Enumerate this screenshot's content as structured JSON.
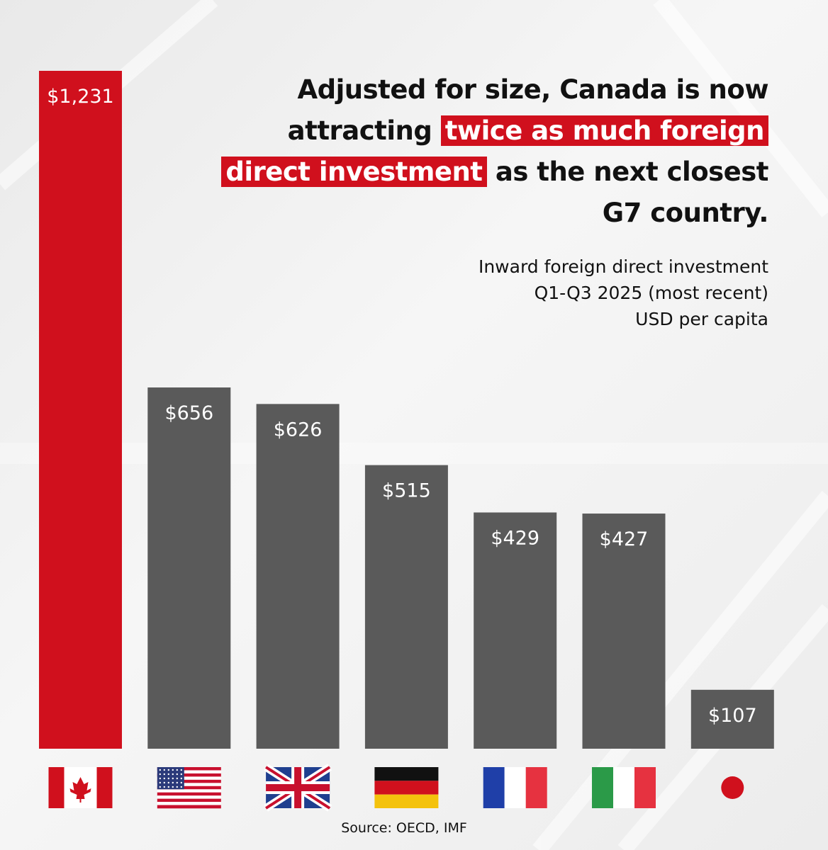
{
  "headline": {
    "part1": "Adjusted for size, Canada is now attracting ",
    "highlight1": "twice as much foreign",
    "highlight2": "direct investment",
    "part2": " as the next closest G7 country."
  },
  "subtitle": {
    "line1": "Inward foreign direct investment",
    "line2": "Q1-Q3 2025 (most recent)",
    "line3": "USD per capita"
  },
  "source": "Source: OECD, IMF",
  "colors": {
    "highlight": "#d0101d",
    "other": "#5a5a5a"
  },
  "chart_data": {
    "type": "bar",
    "categories": [
      "Canada",
      "United States",
      "United Kingdom",
      "Germany",
      "France",
      "Italy",
      "Japan"
    ],
    "category_icons": [
      "canada-flag-icon",
      "usa-flag-icon",
      "uk-flag-icon",
      "germany-flag-icon",
      "france-flag-icon",
      "italy-flag-icon",
      "japan-flag-icon"
    ],
    "values": [
      1231,
      656,
      626,
      515,
      429,
      427,
      107
    ],
    "value_labels": [
      "$1,231",
      "$656",
      "$626",
      "$515",
      "$429",
      "$427",
      "$107"
    ],
    "highlight_index": 0,
    "title": "Adjusted for size, Canada is now attracting twice as much foreign direct investment as the next closest G7 country.",
    "ylim": [
      0,
      1231
    ],
    "grid": false,
    "legend": "none"
  }
}
